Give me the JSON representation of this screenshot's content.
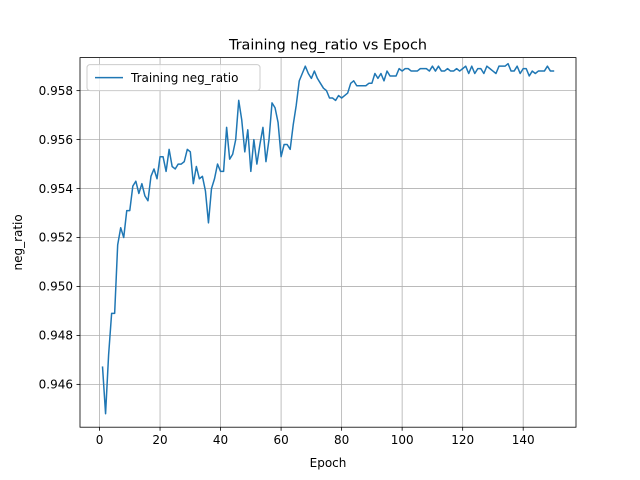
{
  "chart_data": {
    "type": "line",
    "title": "Training neg_ratio vs Epoch",
    "xlabel": "Epoch",
    "ylabel": "neg_ratio",
    "xlim": [
      -6.45,
      157.45
    ],
    "ylim": [
      0.94425,
      0.95935
    ],
    "xticks": [
      0,
      20,
      40,
      60,
      80,
      100,
      120,
      140
    ],
    "yticks": [
      0.946,
      0.948,
      0.95,
      0.952,
      0.954,
      0.956,
      0.958
    ],
    "ytick_labels": [
      "0.946",
      "0.948",
      "0.950",
      "0.952",
      "0.954",
      "0.956",
      "0.958"
    ],
    "grid": true,
    "legend_position": "upper left",
    "colors": {
      "series": "#1f77b4",
      "grid": "#b0b0b0",
      "axis": "#000000"
    },
    "series": [
      {
        "name": "Training neg_ratio",
        "x": [
          1,
          2,
          3,
          4,
          5,
          6,
          7,
          8,
          9,
          10,
          11,
          12,
          13,
          14,
          15,
          16,
          17,
          18,
          19,
          20,
          21,
          22,
          23,
          24,
          25,
          26,
          27,
          28,
          29,
          30,
          31,
          32,
          33,
          34,
          35,
          36,
          37,
          38,
          39,
          40,
          41,
          42,
          43,
          44,
          45,
          46,
          47,
          48,
          49,
          50,
          51,
          52,
          53,
          54,
          55,
          56,
          57,
          58,
          59,
          60,
          61,
          62,
          63,
          64,
          65,
          66,
          67,
          68,
          69,
          70,
          71,
          72,
          73,
          74,
          75,
          76,
          77,
          78,
          79,
          80,
          81,
          82,
          83,
          84,
          85,
          86,
          87,
          88,
          89,
          90,
          91,
          92,
          93,
          94,
          95,
          96,
          97,
          98,
          99,
          100,
          101,
          102,
          103,
          104,
          105,
          106,
          107,
          108,
          109,
          110,
          111,
          112,
          113,
          114,
          115,
          116,
          117,
          118,
          119,
          120,
          121,
          122,
          123,
          124,
          125,
          126,
          127,
          128,
          129,
          130,
          131,
          132,
          133,
          134,
          135,
          136,
          137,
          138,
          139,
          140,
          141,
          142,
          143,
          144,
          145,
          146,
          147,
          148,
          149,
          150
        ],
        "y": [
          0.9467,
          0.9448,
          0.9472,
          0.9489,
          0.9489,
          0.9517,
          0.9524,
          0.952,
          0.9531,
          0.9531,
          0.9541,
          0.9543,
          0.9538,
          0.9542,
          0.9537,
          0.9535,
          0.9545,
          0.9548,
          0.9544,
          0.9553,
          0.9553,
          0.9547,
          0.9556,
          0.9549,
          0.9548,
          0.955,
          0.955,
          0.9551,
          0.9556,
          0.9555,
          0.9542,
          0.9549,
          0.9544,
          0.9545,
          0.9539,
          0.9526,
          0.954,
          0.9544,
          0.955,
          0.9547,
          0.9547,
          0.9565,
          0.9552,
          0.9554,
          0.956,
          0.9576,
          0.9568,
          0.9555,
          0.9564,
          0.9547,
          0.956,
          0.955,
          0.9558,
          0.9565,
          0.9551,
          0.956,
          0.9575,
          0.9573,
          0.9567,
          0.9553,
          0.9558,
          0.9558,
          0.9556,
          0.9566,
          0.9574,
          0.9584,
          0.9587,
          0.959,
          0.9587,
          0.9585,
          0.9588,
          0.9585,
          0.9583,
          0.9581,
          0.958,
          0.9577,
          0.9577,
          0.9576,
          0.9578,
          0.9577,
          0.9578,
          0.9579,
          0.9583,
          0.9584,
          0.9582,
          0.9582,
          0.9582,
          0.9582,
          0.9583,
          0.9583,
          0.9587,
          0.9585,
          0.9587,
          0.9584,
          0.9588,
          0.9586,
          0.9586,
          0.9586,
          0.9589,
          0.9588,
          0.9589,
          0.9589,
          0.9588,
          0.9588,
          0.9588,
          0.9589,
          0.9589,
          0.9589,
          0.9588,
          0.959,
          0.9588,
          0.959,
          0.9588,
          0.9588,
          0.9589,
          0.9588,
          0.9588,
          0.9589,
          0.9588,
          0.9589,
          0.959,
          0.9587,
          0.959,
          0.9587,
          0.9589,
          0.9589,
          0.9587,
          0.959,
          0.9589,
          0.9588,
          0.9587,
          0.959,
          0.959,
          0.959,
          0.9591,
          0.9588,
          0.9588,
          0.959,
          0.9587,
          0.9589,
          0.9589,
          0.9586,
          0.9588,
          0.9587,
          0.9588,
          0.9588,
          0.9588,
          0.959,
          0.9588,
          0.9588
        ]
      }
    ]
  }
}
